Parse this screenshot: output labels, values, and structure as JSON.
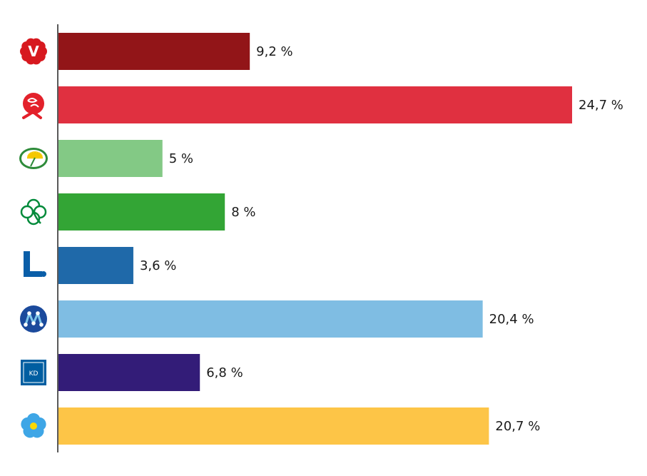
{
  "chart_data": {
    "type": "bar",
    "orientation": "horizontal",
    "grid": false,
    "legend": "none",
    "xlim": [
      0,
      25
    ],
    "categories": [
      "V",
      "S",
      "MP",
      "C",
      "L",
      "M",
      "KD",
      "SD"
    ],
    "values": [
      9.2,
      24.7,
      5,
      8,
      3.6,
      20.4,
      6.8,
      20.7
    ],
    "value_labels": [
      "9,2 %",
      "24,7 %",
      "5 %",
      "8 %",
      "3,6 %",
      "20,4 %",
      "6,8 %",
      "20,7 %"
    ],
    "colors": [
      "#921518",
      "#e03040",
      "#83c985",
      "#33a535",
      "#1f69a9",
      "#7fbde3",
      "#331c78",
      "#fdc547"
    ],
    "icons": [
      "vansterpartiet-logo-icon",
      "socialdemokraterna-rose-icon",
      "miljopartiet-dandelion-icon",
      "centerpartiet-clover-icon",
      "liberalerna-l-icon",
      "moderaterna-m-icon",
      "kristdemokraterna-kd-icon",
      "sverigedemokraterna-flower-icon"
    ],
    "logo_texts": [
      "V",
      "",
      "",
      "",
      "L",
      "",
      "KD",
      ""
    ]
  }
}
